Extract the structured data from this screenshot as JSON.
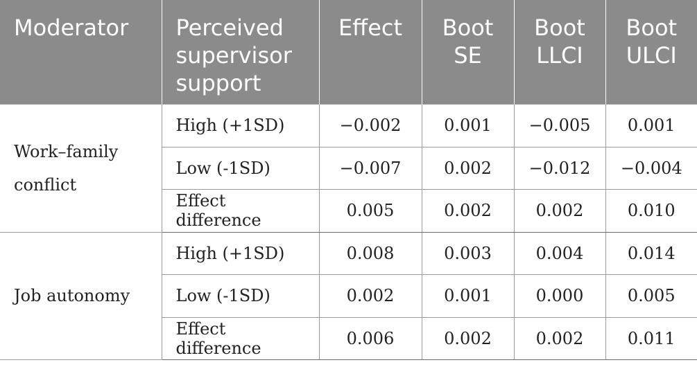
{
  "headers": [
    "Moderator",
    "Perceived supervisor support",
    "Effect",
    "Boot SE",
    "Boot LLCI",
    "Boot ULCI"
  ],
  "groups": [
    {
      "moderator": "Work–family conflict",
      "rows": [
        {
          "level": "High (+1SD)",
          "effect": "−0.002",
          "se": "0.001",
          "llci": "−0.005",
          "ulci": "0.001"
        },
        {
          "level": "Low (-1SD)",
          "effect": "−0.007",
          "se": "0.002",
          "llci": "−0.012",
          "ulci": "−0.004"
        },
        {
          "level": "Effect difference",
          "effect": "0.005",
          "se": "0.002",
          "llci": "0.002",
          "ulci": "0.010"
        }
      ]
    },
    {
      "moderator": "Job autonomy",
      "rows": [
        {
          "level": "High (+1SD)",
          "effect": "0.008",
          "se": "0.003",
          "llci": "0.004",
          "ulci": "0.014"
        },
        {
          "level": "Low (-1SD)",
          "effect": "0.002",
          "se": "0.001",
          "llci": "0.000",
          "ulci": "0.005"
        },
        {
          "level": "Effect difference",
          "effect": "0.006",
          "se": "0.002",
          "llci": "0.002",
          "ulci": "0.011"
        }
      ]
    }
  ]
}
